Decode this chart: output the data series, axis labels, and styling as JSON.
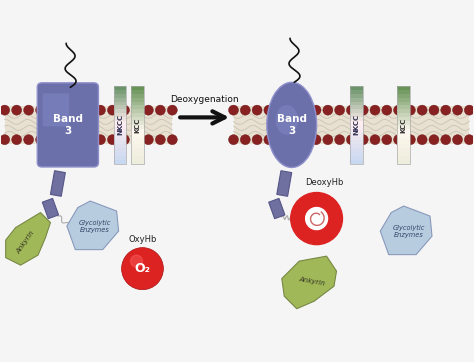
{
  "background_color": "#f5f5f5",
  "deoxygenation_label": "Deoxygenation",
  "oxyhb_label": "OxyHb",
  "o2_label": "O₂",
  "deoxyhb_label": "DeoxyHb",
  "band3_label": "Band\n3",
  "nkcc_label": "NKCC",
  "kcc_label": "KCC",
  "ankyrin_label": "Ankyrin",
  "glycolytic_label": "Glycolytic\nEnzymes",
  "band3_color": "#6b70aa",
  "band3_color2": "#8890cc",
  "nkcc_top": "#c8d8f0",
  "nkcc_bot": "#5a8a5a",
  "kcc_top": "#dde8cc",
  "kcc_bot": "#6a9a5a",
  "ankyrin_color": "#a0b858",
  "linker_color": "#7070a0",
  "membrane_bg": "#e8e0d0",
  "lipid_color": "#882222",
  "glycolytic_color": "#b8cce0",
  "arrow_color": "#111111",
  "oxyhb_color": "#dd2222",
  "o2_text_color": "#ffffff",
  "wavy_color": "#c8c0b0",
  "chain_color": "#111111"
}
